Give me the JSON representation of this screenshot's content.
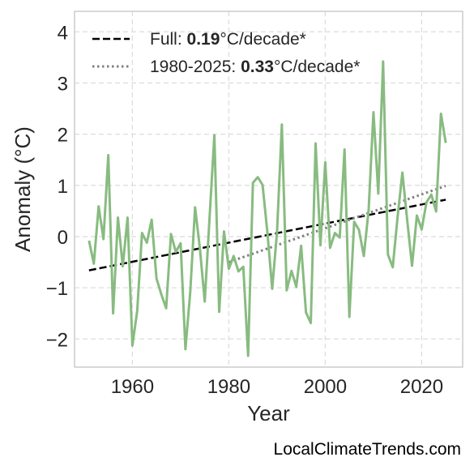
{
  "watermark": "LocalClimateTrends.com",
  "chart_data": {
    "type": "line",
    "title": "",
    "xlabel": "Year",
    "ylabel": "Anomaly (°C)",
    "xlim": [
      1948,
      2028.5
    ],
    "ylim": [
      -2.55,
      4.4
    ],
    "xticks": [
      1960,
      1980,
      2000,
      2020
    ],
    "yticks": [
      -2,
      -1,
      0,
      1,
      2,
      3,
      4
    ],
    "ytick_labels": [
      "−2",
      "−1",
      "0",
      "1",
      "2",
      "3",
      "4"
    ],
    "grid": true,
    "legend_position": "top-left",
    "colors": {
      "series": "#88bb80",
      "full_trend": "#000000",
      "recent_trend": "#808080",
      "frame": "#cccccc",
      "grid": "#dddddd"
    },
    "series": [
      {
        "x": [
          1951,
          1952,
          1953,
          1954,
          1955,
          1956,
          1957,
          1958,
          1959,
          1960,
          1961,
          1962,
          1963,
          1964,
          1965,
          1966,
          1967,
          1968,
          1969,
          1970,
          1971,
          1972,
          1973,
          1974,
          1975,
          1976,
          1977,
          1978,
          1979,
          1980,
          1981,
          1982,
          1983,
          1984,
          1985,
          1986,
          1987,
          1988,
          1989,
          1990,
          1991,
          1992,
          1993,
          1994,
          1995,
          1996,
          1997,
          1998,
          1999,
          2000,
          2001,
          2002,
          2003,
          2004,
          2005,
          2006,
          2007,
          2008,
          2009,
          2010,
          2011,
          2012,
          2013,
          2014,
          2015,
          2016,
          2017,
          2018,
          2019,
          2020,
          2021,
          2022,
          2023,
          2024,
          2025
        ],
        "values": [
          -0.08,
          -0.53,
          0.59,
          -0.05,
          1.59,
          -1.5,
          0.37,
          -0.58,
          0.37,
          -2.13,
          -1.45,
          0.07,
          -0.12,
          0.33,
          -0.82,
          -1.13,
          -1.4,
          0.05,
          -0.3,
          -0.13,
          -2.2,
          -1.08,
          0.57,
          -0.23,
          -1.27,
          0.36,
          1.98,
          -1.47,
          0.1,
          -0.63,
          -0.38,
          -0.68,
          -0.59,
          -2.33,
          1.05,
          1.16,
          1.01,
          0.08,
          -1.02,
          0.09,
          2.19,
          -1.05,
          -0.67,
          -0.98,
          -0.18,
          -1.48,
          -1.69,
          1.82,
          -0.17,
          1.45,
          -0.22,
          0.07,
          -0.02,
          1.7,
          -1.57,
          0.29,
          0.13,
          -0.38,
          0.52,
          2.43,
          0.84,
          3.42,
          -0.35,
          -0.6,
          0.38,
          1.25,
          0.32,
          -0.57,
          0.41,
          0.14,
          0.67,
          0.82,
          0.49,
          2.4,
          1.83
        ]
      }
    ],
    "trend_lines": [
      {
        "label_prefix": "Full: ",
        "label_value": "0.19",
        "label_suffix": "°C/decade*",
        "style": "dashed",
        "x": [
          1951,
          2025
        ],
        "y": [
          -0.66,
          0.72
        ]
      },
      {
        "label_prefix": "1980-2025: ",
        "label_value": "0.33",
        "label_suffix": "°C/decade*",
        "style": "dotted",
        "x": [
          1980,
          2025
        ],
        "y": [
          -0.5,
          0.99
        ]
      }
    ]
  }
}
